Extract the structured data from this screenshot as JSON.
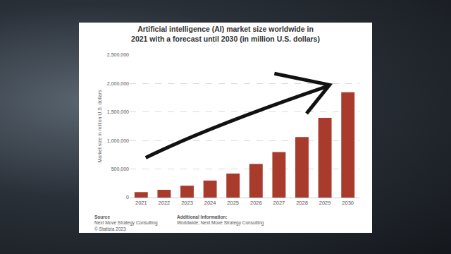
{
  "chart_data": {
    "type": "bar",
    "title": "Artificial intelligence (AI) market size worldwide in 2021 with a forecast until 2030 (in million U.S. dollars)",
    "y_label": "Market size in million U.S. dollars",
    "categories": [
      "2021",
      "2022",
      "2023",
      "2024",
      "2025",
      "2026",
      "2027",
      "2028",
      "2029",
      "2030"
    ],
    "values": [
      95600,
      136550,
      207900,
      298250,
      421450,
      590160,
      797170,
      1061230,
      1397690,
      1847500
    ],
    "color": "#a93b2c",
    "ylim": [
      0,
      2500000
    ],
    "yticks": [
      0,
      {
        "value": 500000,
        "label": "500,000"
      },
      {
        "value": 1000000,
        "label": "1,000,000"
      },
      {
        "value": 1500000,
        "label": "1,500,000"
      },
      {
        "value": 2000000,
        "label": "2,000,000"
      },
      {
        "value": 2500000,
        "label": "2,500,000"
      }
    ],
    "grid": true,
    "annotations": [
      "Source",
      "Next Move Strategy Consulting",
      "© Statista 2023",
      "Additional Information:",
      "Worldwide; Next Move Strategy Consulting"
    ]
  }
}
